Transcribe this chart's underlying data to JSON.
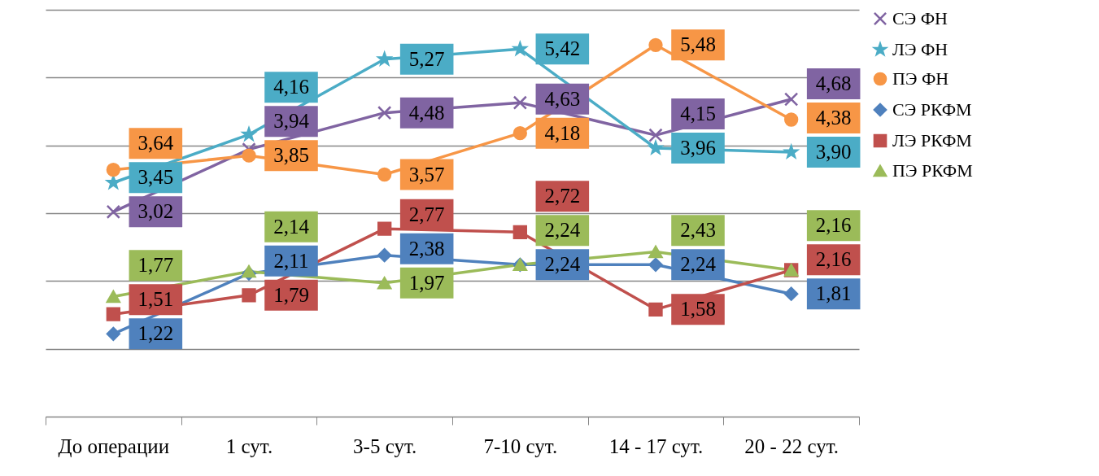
{
  "chart_data": {
    "type": "line",
    "categories": [
      "До операции",
      "1 сут.",
      "3-5 сут.",
      "7-10 сут.",
      "14 - 17 сут.",
      "20 - 22 сут."
    ],
    "series": [
      {
        "name": "СЭ ФН",
        "color": "#8064a2",
        "marker": "cross",
        "values": [
          3.02,
          3.94,
          4.48,
          4.63,
          4.15,
          4.68
        ],
        "value_labels": [
          "3,02",
          "3,94",
          "4,48",
          "4,63",
          "4,15",
          "4,68"
        ]
      },
      {
        "name": "ЛЭ ФН",
        "color": "#4bacc6",
        "marker": "star",
        "values": [
          3.45,
          4.16,
          5.27,
          5.42,
          3.96,
          3.9
        ],
        "value_labels": [
          "3,45",
          "4,16",
          "5,27",
          "5,42",
          "3,96",
          "3,90"
        ]
      },
      {
        "name": "ПЭ ФН",
        "color": "#f79646",
        "marker": "circle",
        "values": [
          3.64,
          3.85,
          3.57,
          4.18,
          5.48,
          4.38
        ],
        "value_labels": [
          "3,64",
          "3,85",
          "3,57",
          "4,18",
          "5,48",
          "4,38"
        ]
      },
      {
        "name": "СЭ РКФМ",
        "color": "#4f81bd",
        "marker": "diamond",
        "values": [
          1.22,
          2.11,
          2.38,
          2.24,
          2.24,
          1.81
        ],
        "value_labels": [
          "1,22",
          "2,11",
          "2,38",
          "2,24",
          "2,24",
          "1,81"
        ]
      },
      {
        "name": "ЛЭ РКФМ",
        "color": "#c0504d",
        "marker": "square",
        "values": [
          1.51,
          1.79,
          2.77,
          2.72,
          1.58,
          2.16
        ],
        "value_labels": [
          "1,51",
          "1,79",
          "2,77",
          "2,72",
          "1,58",
          "2,16"
        ]
      },
      {
        "name": "ПЭ РКФМ",
        "color": "#9bbb59",
        "marker": "triangle",
        "values": [
          1.77,
          2.14,
          1.97,
          2.24,
          2.43,
          2.16
        ],
        "value_labels": [
          "1,77",
          "2,14",
          "1,97",
          "2,24",
          "2,43",
          "2,16"
        ]
      }
    ],
    "ylim": [
      0,
      6
    ],
    "yticks": [
      {
        "value": 0,
        "label": null
      },
      {
        "value": 1,
        "label": null
      },
      {
        "value": 2,
        "label": null
      },
      {
        "value": 3,
        "label": null
      },
      {
        "value": 4,
        "label": null
      },
      {
        "value": 5,
        "label": null
      },
      {
        "value": 6,
        "label": null
      }
    ],
    "grid": "y",
    "tick_labels": "x",
    "legend": "right",
    "line_style": "solid"
  }
}
